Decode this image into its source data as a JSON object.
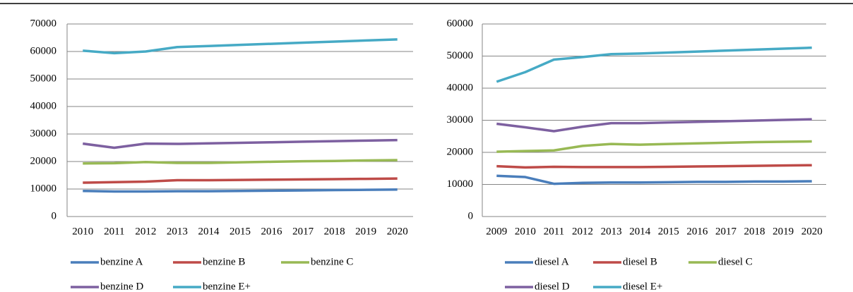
{
  "chart_data": [
    {
      "type": "line",
      "categories": [
        "2010",
        "2011",
        "2012",
        "2013",
        "2014",
        "2015",
        "2016",
        "2017",
        "2018",
        "2019",
        "2020"
      ],
      "ylim": [
        0,
        70000
      ],
      "yticks": [
        0,
        10000,
        20000,
        30000,
        40000,
        50000,
        60000,
        70000
      ],
      "grid": true,
      "legend": "bottom",
      "series": [
        {
          "name": "benzine A",
          "color": "#4a7ebb",
          "values": [
            9300,
            9100,
            9100,
            9200,
            9200,
            9300,
            9400,
            9500,
            9600,
            9700,
            9800
          ]
        },
        {
          "name": "benzine B",
          "color": "#be4b48",
          "values": [
            12300,
            12500,
            12700,
            13200,
            13200,
            13300,
            13400,
            13500,
            13600,
            13700,
            13800
          ]
        },
        {
          "name": "benzine C",
          "color": "#98b954",
          "values": [
            19300,
            19400,
            19800,
            19500,
            19500,
            19700,
            19900,
            20100,
            20200,
            20400,
            20500
          ]
        },
        {
          "name": "benzine D",
          "color": "#7d60a0",
          "values": [
            26500,
            25000,
            26500,
            26400,
            26600,
            26800,
            27000,
            27200,
            27400,
            27600,
            27800
          ]
        },
        {
          "name": "benzine E+",
          "color": "#46aac5",
          "values": [
            60300,
            59400,
            60000,
            61600,
            62000,
            62400,
            62800,
            63200,
            63600,
            64000,
            64400
          ]
        }
      ]
    },
    {
      "type": "line",
      "categories": [
        "2009",
        "2010",
        "2011",
        "2012",
        "2013",
        "2014",
        "2015",
        "2016",
        "2017",
        "2018",
        "2019",
        "2020"
      ],
      "ylim": [
        0,
        60000
      ],
      "yticks": [
        0,
        10000,
        20000,
        30000,
        40000,
        50000,
        60000
      ],
      "grid": true,
      "legend": "bottom",
      "series": [
        {
          "name": "diesel A",
          "color": "#4a7ebb",
          "values": [
            12700,
            12300,
            10200,
            10500,
            10600,
            10600,
            10700,
            10800,
            10800,
            10900,
            10900,
            11000
          ]
        },
        {
          "name": "diesel B",
          "color": "#be4b48",
          "values": [
            15700,
            15300,
            15500,
            15400,
            15400,
            15400,
            15500,
            15600,
            15700,
            15800,
            15900,
            16000
          ]
        },
        {
          "name": "diesel C",
          "color": "#98b954",
          "values": [
            20200,
            20400,
            20600,
            22000,
            22600,
            22400,
            22600,
            22800,
            23000,
            23200,
            23300,
            23400
          ]
        },
        {
          "name": "diesel D",
          "color": "#7d60a0",
          "values": [
            28900,
            27800,
            26600,
            28000,
            29100,
            29100,
            29300,
            29500,
            29700,
            29900,
            30100,
            30300
          ]
        },
        {
          "name": "diesel E+",
          "color": "#46aac5",
          "values": [
            42000,
            45000,
            48900,
            49700,
            50600,
            50800,
            51100,
            51400,
            51700,
            52000,
            52300,
            52600
          ]
        }
      ]
    }
  ]
}
